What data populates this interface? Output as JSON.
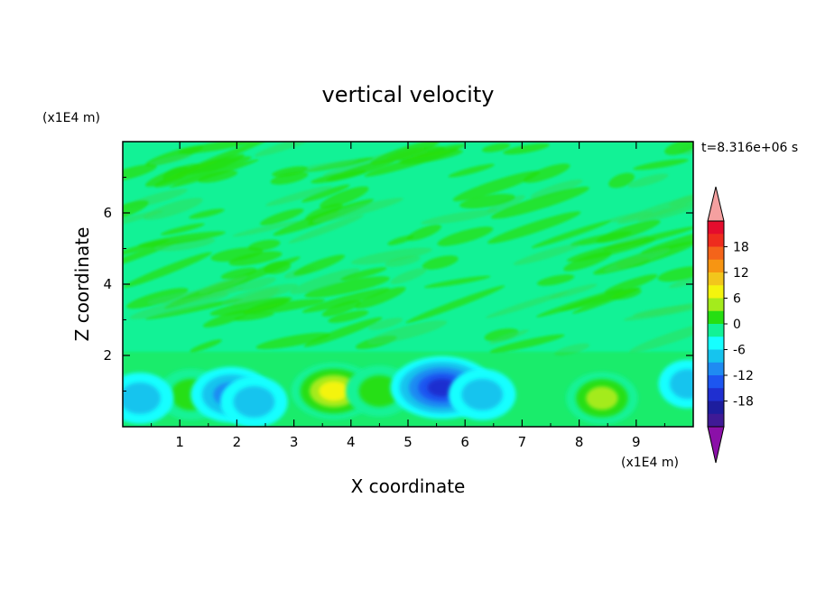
{
  "chart_data": {
    "type": "heatmap",
    "title": "vertical velocity",
    "xlabel": "X coordinate",
    "ylabel": "Z coordinate",
    "x_unit": "(x1E4 m)",
    "y_unit": "(x1E4 m)",
    "time_label": "t=8.316e+06 s",
    "xlim": [
      0,
      10
    ],
    "ylim": [
      0,
      8
    ],
    "x_ticks": [
      1,
      2,
      3,
      4,
      5,
      6,
      7,
      8,
      9
    ],
    "y_ticks": [
      2,
      4,
      6
    ],
    "colorbar": {
      "tick_values": [
        18,
        12,
        6,
        0,
        -6,
        -12,
        -18
      ],
      "levels": [
        -21,
        -18,
        -15,
        -12,
        -9,
        -6,
        -3,
        0,
        3,
        6,
        9,
        12,
        15,
        18,
        21
      ],
      "under_color": "#8b10a8",
      "over_color": "#f5a0a0",
      "colors": [
        "#3f1a96",
        "#1d1d9e",
        "#1f2fd0",
        "#1d56f0",
        "#1f8bf2",
        "#16c4ee",
        "#16ffff",
        "#12f296",
        "#26df12",
        "#a4eb1c",
        "#f4f40e",
        "#f2c61c",
        "#f79512",
        "#f4641a",
        "#ee2c1e",
        "#e40c2d"
      ]
    },
    "anomalies": [
      {
        "x": 1.2,
        "z": 0.9,
        "w": 6
      },
      {
        "x": 1.9,
        "z": 0.9,
        "w": -9
      },
      {
        "x": 2.3,
        "z": 0.7,
        "w": -6
      },
      {
        "x": 3.7,
        "z": 1.0,
        "w": 10
      },
      {
        "x": 4.5,
        "z": 1.0,
        "w": 6
      },
      {
        "x": 5.6,
        "z": 1.1,
        "w": -14
      },
      {
        "x": 6.3,
        "z": 0.9,
        "w": -6
      },
      {
        "x": 8.4,
        "z": 0.8,
        "w": 7
      },
      {
        "x": 0.3,
        "z": 0.8,
        "w": -6
      },
      {
        "x": 9.9,
        "z": 1.2,
        "w": -4
      }
    ]
  }
}
